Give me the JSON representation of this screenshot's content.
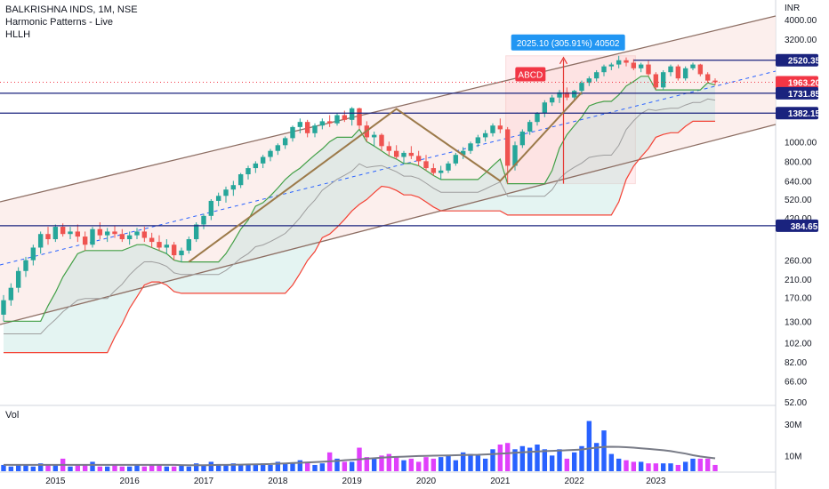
{
  "header": {
    "symbol_line": "BALKRISHNA INDS, 1M, NSE",
    "indicator_1": "Harmonic Patterns - Live",
    "indicator_2": "HLLH"
  },
  "volume_pane": {
    "label": "Vol"
  },
  "colors": {
    "up": "#26a69a",
    "down": "#ef5350",
    "vol_up": "#2962ff",
    "vol_down": "#e040fb",
    "hline": "#1a237e",
    "price_label": "#f23645",
    "measure_box": "#2196f3",
    "pattern": "#9c7a4a"
  },
  "price_axis": {
    "unit": "INR",
    "ticks": [
      "4000.00",
      "3200.00",
      "2520.35",
      "1963.20",
      "1731.85",
      "1382.15",
      "1000.00",
      "800.00",
      "640.00",
      "520.00",
      "420.00",
      "384.65",
      "260.00",
      "210.00",
      "170.00",
      "130.00",
      "102.00",
      "82.00",
      "66.00",
      "52.00"
    ]
  },
  "volume_axis": {
    "ticks": [
      "30M",
      "10M"
    ]
  },
  "chart_data": {
    "type": "candlestick",
    "scale": "log",
    "ylim": [
      52,
      4000
    ],
    "x_labels": [
      "2015",
      "2016",
      "2017",
      "2018",
      "2019",
      "2020",
      "2021",
      "2022",
      "2023"
    ],
    "horizontal_levels": [
      {
        "label": "2520.35",
        "value": 2520.35
      },
      {
        "label": "1731.85",
        "value": 1731.85
      },
      {
        "label": "1382.15",
        "value": 1382.15
      },
      {
        "label": "384.65",
        "value": 384.65
      }
    ],
    "last_price": {
      "label": "1963.20",
      "value": 1963.2
    },
    "measurement": {
      "text": "2025.10 (305.91%) 40502",
      "from": 620,
      "to": 2650
    },
    "pattern_label": "ABCD",
    "candles": [
      [
        140,
        175,
        130,
        165
      ],
      [
        165,
        200,
        155,
        190
      ],
      [
        190,
        240,
        180,
        230
      ],
      [
        230,
        270,
        215,
        260
      ],
      [
        260,
        310,
        245,
        300
      ],
      [
        300,
        360,
        280,
        350
      ],
      [
        350,
        380,
        310,
        330
      ],
      [
        330,
        390,
        320,
        380
      ],
      [
        380,
        395,
        340,
        350
      ],
      [
        350,
        380,
        330,
        360
      ],
      [
        360,
        390,
        320,
        340
      ],
      [
        340,
        360,
        290,
        310
      ],
      [
        310,
        380,
        300,
        370
      ],
      [
        370,
        400,
        330,
        345
      ],
      [
        345,
        375,
        320,
        360
      ],
      [
        360,
        385,
        335,
        350
      ],
      [
        350,
        370,
        320,
        330
      ],
      [
        330,
        360,
        310,
        345
      ],
      [
        345,
        375,
        330,
        360
      ],
      [
        360,
        380,
        320,
        335
      ],
      [
        335,
        355,
        300,
        320
      ],
      [
        320,
        345,
        290,
        300
      ],
      [
        300,
        330,
        280,
        310
      ],
      [
        310,
        320,
        260,
        275
      ],
      [
        275,
        300,
        255,
        290
      ],
      [
        290,
        340,
        280,
        330
      ],
      [
        330,
        400,
        320,
        390
      ],
      [
        390,
        440,
        370,
        430
      ],
      [
        430,
        520,
        410,
        510
      ],
      [
        510,
        560,
        480,
        540
      ],
      [
        540,
        600,
        500,
        580
      ],
      [
        580,
        640,
        540,
        610
      ],
      [
        610,
        700,
        590,
        690
      ],
      [
        690,
        760,
        650,
        740
      ],
      [
        740,
        800,
        700,
        780
      ],
      [
        780,
        860,
        740,
        840
      ],
      [
        840,
        920,
        800,
        900
      ],
      [
        900,
        980,
        860,
        960
      ],
      [
        960,
        1060,
        920,
        1040
      ],
      [
        1040,
        1200,
        1000,
        1180
      ],
      [
        1180,
        1300,
        1100,
        1250
      ],
      [
        1250,
        1280,
        1050,
        1100
      ],
      [
        1100,
        1230,
        1050,
        1200
      ],
      [
        1200,
        1300,
        1150,
        1260
      ],
      [
        1260,
        1350,
        1180,
        1230
      ],
      [
        1230,
        1380,
        1200,
        1350
      ],
      [
        1350,
        1420,
        1250,
        1280
      ],
      [
        1280,
        1480,
        1200,
        1460
      ],
      [
        1460,
        1470,
        1150,
        1200
      ],
      [
        1200,
        1260,
        1000,
        1050
      ],
      [
        1050,
        1120,
        950,
        1080
      ],
      [
        1080,
        1100,
        900,
        950
      ],
      [
        950,
        1000,
        850,
        900
      ],
      [
        900,
        960,
        820,
        840
      ],
      [
        840,
        900,
        780,
        880
      ],
      [
        880,
        950,
        820,
        850
      ],
      [
        850,
        900,
        760,
        800
      ],
      [
        800,
        860,
        720,
        740
      ],
      [
        740,
        780,
        680,
        700
      ],
      [
        700,
        760,
        650,
        720
      ],
      [
        720,
        800,
        700,
        780
      ],
      [
        780,
        880,
        760,
        860
      ],
      [
        860,
        940,
        820,
        900
      ],
      [
        900,
        1000,
        870,
        980
      ],
      [
        980,
        1080,
        940,
        1050
      ],
      [
        1050,
        1140,
        1000,
        1100
      ],
      [
        1100,
        1230,
        1060,
        1200
      ],
      [
        1200,
        1300,
        1100,
        1150
      ],
      [
        1150,
        1180,
        620,
        760
      ],
      [
        760,
        1000,
        720,
        960
      ],
      [
        960,
        1150,
        930,
        1120
      ],
      [
        1120,
        1280,
        1080,
        1250
      ],
      [
        1250,
        1400,
        1200,
        1380
      ],
      [
        1380,
        1600,
        1320,
        1560
      ],
      [
        1560,
        1700,
        1500,
        1650
      ],
      [
        1650,
        1800,
        1550,
        1750
      ],
      [
        1750,
        1850,
        1600,
        1650
      ],
      [
        1650,
        1800,
        1580,
        1780
      ],
      [
        1780,
        2000,
        1700,
        1950
      ],
      [
        1950,
        2100,
        1880,
        2050
      ],
      [
        2050,
        2250,
        1980,
        2200
      ],
      [
        2200,
        2400,
        2100,
        2350
      ],
      [
        2350,
        2450,
        2250,
        2400
      ],
      [
        2400,
        2650,
        2300,
        2520
      ],
      [
        2520,
        2600,
        2350,
        2450
      ],
      [
        2450,
        2550,
        2250,
        2300
      ],
      [
        2300,
        2450,
        2200,
        2400
      ],
      [
        2400,
        2500,
        2100,
        2150
      ],
      [
        2150,
        2200,
        1800,
        1850
      ],
      [
        1850,
        2250,
        1800,
        2200
      ],
      [
        2200,
        2400,
        2100,
        2350
      ],
      [
        2350,
        2400,
        2000,
        2050
      ],
      [
        2050,
        2350,
        2000,
        2300
      ],
      [
        2300,
        2450,
        2250,
        2400
      ],
      [
        2400,
        2420,
        2100,
        2150
      ],
      [
        2150,
        2200,
        1950,
        2000
      ],
      [
        2000,
        2050,
        1900,
        1963
      ]
    ],
    "volumes_m": [
      4,
      3,
      4,
      4,
      3,
      5,
      4,
      4,
      8,
      3,
      4,
      4,
      6,
      3,
      3,
      4,
      3,
      3,
      4,
      3,
      4,
      4,
      3,
      3,
      4,
      3,
      5,
      4,
      6,
      4,
      4,
      5,
      4,
      4,
      4,
      5,
      4,
      6,
      5,
      5,
      7,
      6,
      4,
      5,
      12,
      8,
      6,
      6,
      15,
      9,
      8,
      10,
      11,
      9,
      7,
      8,
      6,
      9,
      8,
      9,
      10,
      7,
      12,
      11,
      10,
      8,
      14,
      17,
      18,
      14,
      16,
      15,
      17,
      14,
      10,
      14,
      8,
      12,
      16,
      32,
      18,
      26,
      11,
      8,
      7,
      6,
      6,
      5,
      5,
      5,
      5,
      4,
      6,
      8,
      8,
      8,
      4
    ],
    "volume_ma_m": [
      4,
      4,
      4,
      4,
      4,
      4,
      4,
      4,
      4,
      4,
      4,
      4,
      4,
      4,
      4,
      4,
      4,
      4,
      4,
      4,
      4,
      4,
      4,
      4,
      3.9,
      3.8,
      3.8,
      3.8,
      3.9,
      4,
      4,
      4.1,
      4.2,
      4.3,
      4.4,
      4.5,
      4.6,
      4.8,
      5,
      5.2,
      5.4,
      5.6,
      5.8,
      6,
      6.3,
      6.6,
      7,
      7.3,
      7.6,
      8,
      8.3,
      8.6,
      8.9,
      9.1,
      9.3,
      9.5,
      9.7,
      9.8,
      9.9,
      10,
      10.1,
      10.2,
      10.3,
      10.4,
      10.5,
      10.7,
      10.9,
      11.2,
      11.5,
      11.8,
      12,
      12.3,
      12.5,
      12.8,
      13,
      13.2,
      13.4,
      13.6,
      13.8,
      14.5,
      15,
      15.5,
      15.6,
      15.5,
      15.3,
      15,
      14.6,
      14.2,
      13.8,
      13.4,
      12.8,
      12,
      11.2,
      10.2,
      9.4,
      8.8,
      8.2
    ]
  }
}
